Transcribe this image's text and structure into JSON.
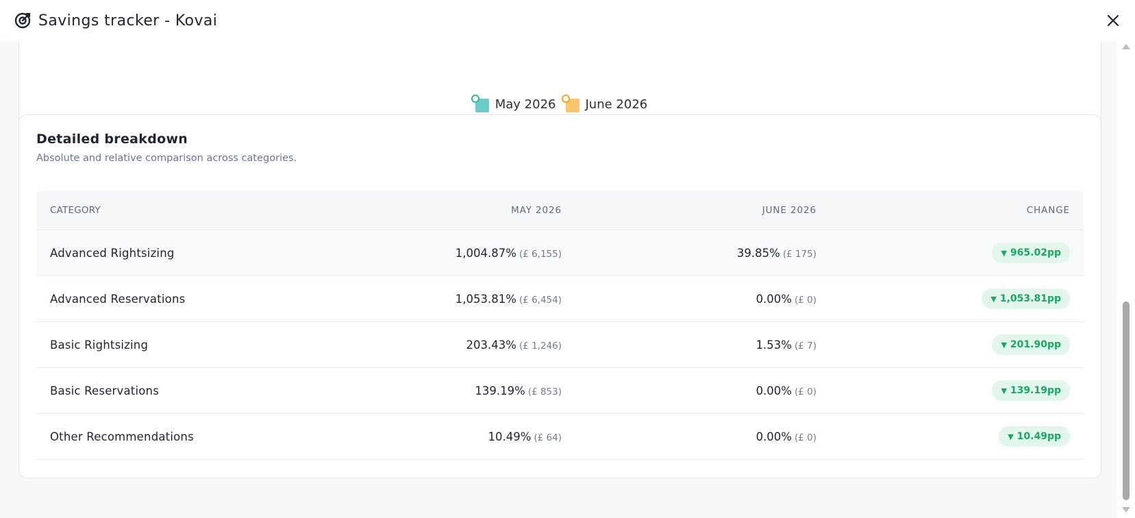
{
  "window": {
    "title": "Savings tracker - Kovai",
    "icon": "target-icon",
    "close_icon": "close-icon"
  },
  "legend": [
    {
      "label": "May 2026",
      "color": "#6bcdc7",
      "dot_color": "#2fb3aa"
    },
    {
      "label": "June 2026",
      "color": "#f8c66a",
      "dot_color": "#eea52a"
    }
  ],
  "breakdown": {
    "title": "Detailed breakdown",
    "subtitle": "Absolute and relative comparison across categories.",
    "columns": {
      "category": "CATEGORY",
      "may": "MAY 2026",
      "june": "JUNE 2026",
      "change": "CHANGE"
    },
    "rows": [
      {
        "category": "Advanced Rightsizing",
        "may_pct": "1,004.87%",
        "may_abs": "(£ 6,155)",
        "june_pct": "39.85%",
        "june_abs": "(£ 175)",
        "change": "965.02pp"
      },
      {
        "category": "Advanced Reservations",
        "may_pct": "1,053.81%",
        "may_abs": "(£ 6,454)",
        "june_pct": "0.00%",
        "june_abs": "(£ 0)",
        "change": "1,053.81pp"
      },
      {
        "category": "Basic Rightsizing",
        "may_pct": "203.43%",
        "may_abs": "(£ 1,246)",
        "june_pct": "1.53%",
        "june_abs": "(£ 7)",
        "change": "201.90pp"
      },
      {
        "category": "Basic Reservations",
        "may_pct": "139.19%",
        "may_abs": "(£ 853)",
        "june_pct": "0.00%",
        "june_abs": "(£ 0)",
        "change": "139.19pp"
      },
      {
        "category": "Other Recommendations",
        "may_pct": "10.49%",
        "may_abs": "(£ 64)",
        "june_pct": "0.00%",
        "june_abs": "(£ 0)",
        "change": "10.49pp"
      }
    ],
    "change_arrow": "▼",
    "badge_colors": {
      "background": "#e3f6ec",
      "text": "#17a864"
    }
  }
}
